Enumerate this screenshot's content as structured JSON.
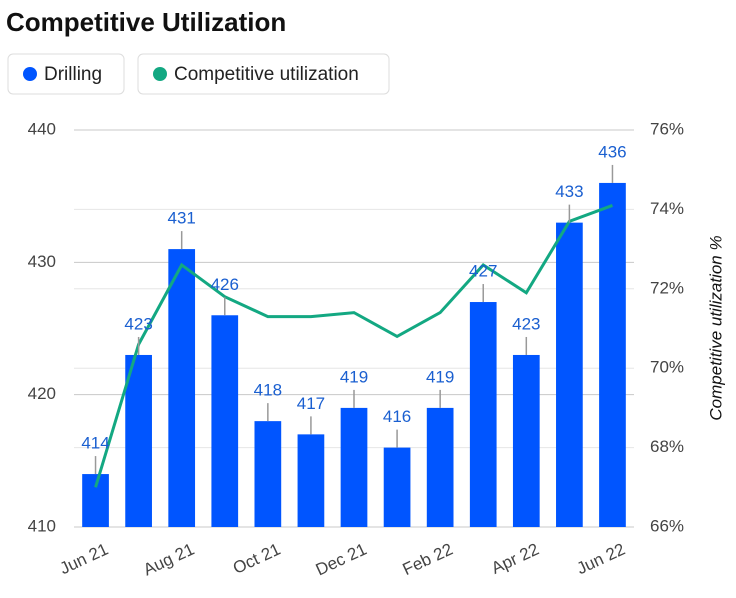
{
  "chart_data": {
    "type": "bar",
    "title": "Competitive Utilization",
    "categories": [
      "Jun 21",
      null,
      "Aug 21",
      null,
      "Oct 21",
      null,
      "Dec 21",
      null,
      "Feb 22",
      null,
      "Apr 22",
      null,
      "Jun 22"
    ],
    "series": [
      {
        "name": "Drilling",
        "type": "bar",
        "color": "#0055ff",
        "values": [
          414,
          423,
          431,
          426,
          418,
          417,
          419,
          416,
          419,
          427,
          423,
          433,
          436
        ]
      },
      {
        "name": "Competitive utilization",
        "type": "line",
        "color": "#13a882",
        "axis": "y2",
        "values": [
          67.0,
          70.6,
          72.6,
          71.8,
          71.3,
          71.3,
          71.4,
          70.8,
          71.4,
          72.6,
          71.9,
          73.7,
          74.1
        ]
      }
    ],
    "ylim": [
      410,
      440
    ],
    "yticks": [
      410,
      420,
      430,
      440
    ],
    "y2lim": [
      66,
      76
    ],
    "y2ticks": [
      {
        "value": 66,
        "label": "66%"
      },
      {
        "value": 68,
        "label": "68%"
      },
      {
        "value": 70,
        "label": "70%"
      },
      {
        "value": 72,
        "label": "72%"
      },
      {
        "value": 74,
        "label": "74%"
      },
      {
        "value": 76,
        "label": "76%"
      }
    ],
    "y2label": "Competitive utilization %",
    "grid": true
  }
}
